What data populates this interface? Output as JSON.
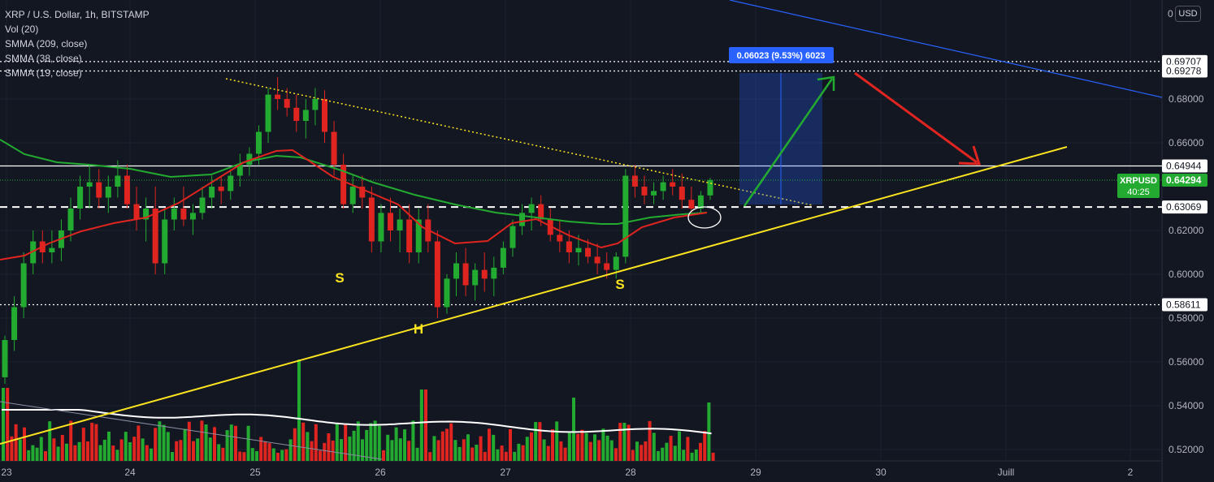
{
  "legend": {
    "symbol": "XRP / U.S. Dollar, 1h, BITSTAMP",
    "vol": "Vol (20)",
    "smma1": "SMMA (209, close)",
    "smma2": "SMMA (38, close)",
    "smma3": "SMMA (19, close)"
  },
  "currency_button": "USD",
  "axis_zero_label": "0",
  "chart_data": {
    "type": "candlestick",
    "x_axis_labels": [
      "23",
      "24",
      "25",
      "26",
      "27",
      "28",
      "29",
      "30",
      "Juill",
      "2"
    ],
    "y_axis_ticks": [
      "0.68000",
      "0.66000",
      "0.62000",
      "0.60000",
      "0.58000",
      "0.56000",
      "0.54000",
      "0.52000"
    ],
    "y_tick_values": [
      0.68,
      0.66,
      0.62,
      0.6,
      0.58,
      0.56,
      0.54,
      0.52
    ],
    "ylim": [
      0.511,
      0.7
    ],
    "price_levels": [
      {
        "value": 0.69707,
        "label": "0.69707",
        "style": "dotted",
        "color": "#ffffff"
      },
      {
        "value": 0.69278,
        "label": "0.69278",
        "style": "dotted",
        "color": "#ffffff"
      },
      {
        "value": 0.64944,
        "label": "0.64944",
        "style": "solid",
        "color": "#ffffff"
      },
      {
        "value": 0.63069,
        "label": "0.63069",
        "style": "dashed",
        "color": "#ffffff"
      },
      {
        "value": 0.58611,
        "label": "0.58611",
        "style": "dotted",
        "color": "#ffffff"
      }
    ],
    "current_price": {
      "symbol": "XRPUSD",
      "value": "0.64294",
      "countdown": "40:25",
      "color": "#22ab30"
    },
    "measure_label": "0.06023 (9.53%) 6023",
    "pattern_labels": [
      "S",
      "H",
      "S"
    ],
    "candles_ohlc_approx": [
      [
        0.553,
        0.572,
        0.55,
        0.57
      ],
      [
        0.57,
        0.59,
        0.565,
        0.585
      ],
      [
        0.585,
        0.61,
        0.58,
        0.605
      ],
      [
        0.605,
        0.62,
        0.6,
        0.615
      ],
      [
        0.615,
        0.62,
        0.605,
        0.61
      ],
      [
        0.61,
        0.62,
        0.605,
        0.612
      ],
      [
        0.612,
        0.625,
        0.606,
        0.62
      ],
      [
        0.62,
        0.635,
        0.615,
        0.63
      ],
      [
        0.63,
        0.645,
        0.625,
        0.64
      ],
      [
        0.64,
        0.65,
        0.63,
        0.642
      ],
      [
        0.642,
        0.648,
        0.63,
        0.635
      ],
      [
        0.635,
        0.645,
        0.628,
        0.64
      ],
      [
        0.64,
        0.652,
        0.635,
        0.645
      ],
      [
        0.645,
        0.65,
        0.63,
        0.632
      ],
      [
        0.632,
        0.64,
        0.62,
        0.625
      ],
      [
        0.625,
        0.635,
        0.615,
        0.63
      ],
      [
        0.63,
        0.64,
        0.6,
        0.605
      ],
      [
        0.605,
        0.63,
        0.6,
        0.625
      ],
      [
        0.625,
        0.635,
        0.62,
        0.63
      ],
      [
        0.63,
        0.64,
        0.622,
        0.625
      ],
      [
        0.625,
        0.632,
        0.618,
        0.628
      ],
      [
        0.628,
        0.64,
        0.625,
        0.635
      ],
      [
        0.635,
        0.645,
        0.63,
        0.64
      ],
      [
        0.64,
        0.645,
        0.632,
        0.638
      ],
      [
        0.638,
        0.648,
        0.634,
        0.645
      ],
      [
        0.645,
        0.655,
        0.64,
        0.65
      ],
      [
        0.65,
        0.658,
        0.645,
        0.655
      ],
      [
        0.655,
        0.668,
        0.65,
        0.665
      ],
      [
        0.665,
        0.685,
        0.66,
        0.682
      ],
      [
        0.682,
        0.69,
        0.675,
        0.68
      ],
      [
        0.68,
        0.685,
        0.672,
        0.676
      ],
      [
        0.676,
        0.682,
        0.665,
        0.67
      ],
      [
        0.67,
        0.68,
        0.662,
        0.675
      ],
      [
        0.675,
        0.685,
        0.668,
        0.68
      ],
      [
        0.68,
        0.684,
        0.66,
        0.665
      ],
      [
        0.665,
        0.67,
        0.645,
        0.65
      ],
      [
        0.65,
        0.655,
        0.63,
        0.632
      ],
      [
        0.632,
        0.645,
        0.628,
        0.64
      ],
      [
        0.64,
        0.645,
        0.63,
        0.635
      ],
      [
        0.635,
        0.64,
        0.61,
        0.615
      ],
      [
        0.615,
        0.632,
        0.61,
        0.628
      ],
      [
        0.628,
        0.635,
        0.615,
        0.62
      ],
      [
        0.62,
        0.63,
        0.61,
        0.625
      ],
      [
        0.625,
        0.632,
        0.605,
        0.61
      ],
      [
        0.61,
        0.63,
        0.605,
        0.625
      ],
      [
        0.625,
        0.632,
        0.61,
        0.615
      ],
      [
        0.615,
        0.62,
        0.58,
        0.585
      ],
      [
        0.585,
        0.6,
        0.582,
        0.598
      ],
      [
        0.598,
        0.61,
        0.59,
        0.605
      ],
      [
        0.605,
        0.612,
        0.59,
        0.595
      ],
      [
        0.595,
        0.605,
        0.588,
        0.602
      ],
      [
        0.602,
        0.61,
        0.592,
        0.598
      ],
      [
        0.598,
        0.608,
        0.59,
        0.603
      ],
      [
        0.603,
        0.615,
        0.6,
        0.612
      ],
      [
        0.612,
        0.625,
        0.608,
        0.622
      ],
      [
        0.622,
        0.632,
        0.618,
        0.628
      ],
      [
        0.628,
        0.635,
        0.62,
        0.632
      ],
      [
        0.632,
        0.636,
        0.622,
        0.625
      ],
      [
        0.625,
        0.63,
        0.615,
        0.618
      ],
      [
        0.618,
        0.625,
        0.61,
        0.615
      ],
      [
        0.615,
        0.62,
        0.605,
        0.61
      ],
      [
        0.61,
        0.618,
        0.604,
        0.612
      ],
      [
        0.612,
        0.616,
        0.605,
        0.608
      ],
      [
        0.608,
        0.614,
        0.6,
        0.605
      ],
      [
        0.605,
        0.61,
        0.598,
        0.602
      ],
      [
        0.602,
        0.61,
        0.598,
        0.608
      ],
      [
        0.608,
        0.648,
        0.605,
        0.645
      ],
      [
        0.645,
        0.65,
        0.635,
        0.64
      ],
      [
        0.64,
        0.645,
        0.632,
        0.636
      ],
      [
        0.636,
        0.642,
        0.632,
        0.638
      ],
      [
        0.638,
        0.645,
        0.634,
        0.642
      ],
      [
        0.642,
        0.648,
        0.636,
        0.64
      ],
      [
        0.64,
        0.646,
        0.63,
        0.634
      ],
      [
        0.634,
        0.64,
        0.628,
        0.63
      ],
      [
        0.63,
        0.638,
        0.628,
        0.636
      ],
      [
        0.636,
        0.644,
        0.634,
        0.643
      ]
    ]
  }
}
